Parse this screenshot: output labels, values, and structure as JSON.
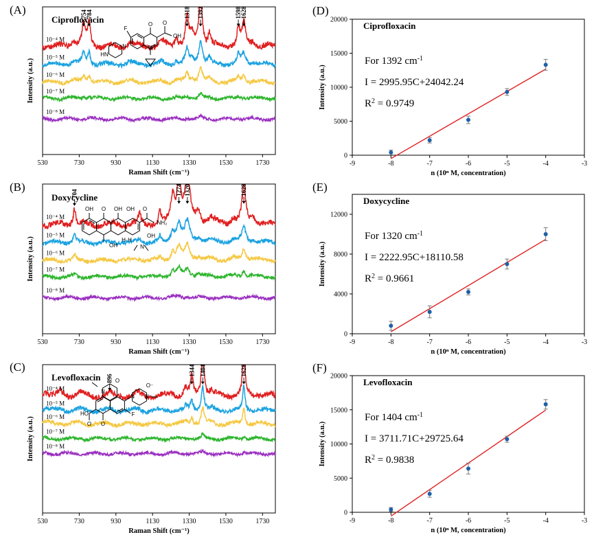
{
  "colors": {
    "conc_series": [
      "#e02020",
      "#1ba2e0",
      "#f5c842",
      "#2db52d",
      "#9a2fc0"
    ],
    "fit_line": "#e02020",
    "data_point": "#1f5fa8",
    "error_bar": "#7a7a7a"
  },
  "structure_icons": [
    "ciprofloxacin-structure-icon",
    "doxycycline-structure-icon",
    "levofloxacin-structure-icon"
  ],
  "chart_data": [
    {
      "panel": "(A)",
      "type": "line",
      "title": "Ciprofloxacin",
      "xlabel": "Raman Shift (cm⁻¹)",
      "ylabel": "Intensity (a.u.)",
      "xlim": [
        530,
        1800
      ],
      "x_ticks": [
        530,
        730,
        930,
        1130,
        1330,
        1530,
        1730
      ],
      "series_labels": [
        "10⁻⁴ M",
        "10⁻⁵ M",
        "10⁻⁶ M",
        "10⁻⁷ M",
        "10⁻⁸ M"
      ],
      "peak_labels": [
        "754",
        "784",
        "1318",
        "1392",
        "1598",
        "1628"
      ],
      "peak_positions": [
        754,
        784,
        1318,
        1392,
        1598,
        1628
      ],
      "series_scale": [
        1.0,
        0.5,
        0.3,
        0.08,
        0.04
      ],
      "baselines": [
        0.73,
        0.61,
        0.49,
        0.38,
        0.24
      ],
      "peaks": [
        [
          754,
          0.42,
          10
        ],
        [
          784,
          0.5,
          9
        ],
        [
          700,
          0.1,
          25
        ],
        [
          1010,
          0.08,
          20
        ],
        [
          1180,
          0.1,
          15
        ],
        [
          1260,
          0.18,
          10
        ],
        [
          1318,
          0.62,
          10
        ],
        [
          1345,
          0.22,
          10
        ],
        [
          1392,
          1.0,
          12
        ],
        [
          1440,
          0.25,
          8
        ],
        [
          1598,
          0.35,
          10
        ],
        [
          1628,
          0.45,
          12
        ],
        [
          1680,
          0.1,
          15
        ]
      ],
      "grid": false,
      "legend": "none"
    },
    {
      "panel": "(B)",
      "type": "line",
      "title": "Doxycycline",
      "xlabel": "Raman Shift (cm⁻¹)",
      "ylabel": "Intensity (a.u.)",
      "xlim": [
        530,
        1800
      ],
      "x_ticks": [
        530,
        730,
        930,
        1130,
        1330,
        1530,
        1730
      ],
      "series_labels": [
        "10⁻⁴ M",
        "10⁻⁵ M",
        "10⁻⁶ M",
        "10⁻⁷ M",
        "10⁻⁸ M"
      ],
      "peak_labels": [
        "704",
        "1274",
        "1320",
        "1628"
      ],
      "peak_positions": [
        704,
        1274,
        1320,
        1628
      ],
      "series_scale": [
        1.0,
        0.42,
        0.3,
        0.18,
        0.03
      ],
      "baselines": [
        0.73,
        0.61,
        0.49,
        0.38,
        0.24
      ],
      "peaks": [
        [
          704,
          0.35,
          8
        ],
        [
          1060,
          0.2,
          8
        ],
        [
          1170,
          0.25,
          6
        ],
        [
          1240,
          0.55,
          12
        ],
        [
          1274,
          0.85,
          14
        ],
        [
          1320,
          1.0,
          16
        ],
        [
          1380,
          0.22,
          14
        ],
        [
          1450,
          0.12,
          20
        ],
        [
          1570,
          0.12,
          15
        ],
        [
          1628,
          0.75,
          12
        ],
        [
          1680,
          0.15,
          15
        ]
      ],
      "grid": false,
      "legend": "none"
    },
    {
      "panel": "(C)",
      "type": "line",
      "title": "Levofloxacin",
      "xlabel": "Raman Shift (cm⁻¹)",
      "ylabel": "Intensity (a.u.)",
      "xlim": [
        530,
        1800
      ],
      "x_ticks": [
        530,
        730,
        930,
        1130,
        1330,
        1530,
        1730
      ],
      "series_labels": [
        "10⁻⁴ M",
        "10⁻⁵ M",
        "10⁻⁶ M",
        "10⁻⁷ M",
        "10⁻⁸ M"
      ],
      "peak_labels": [
        "896",
        "1344",
        "1404",
        "1628"
      ],
      "peak_positions": [
        896,
        1344,
        1404,
        1628
      ],
      "series_scale": [
        1.0,
        0.5,
        0.35,
        0.08,
        0.04
      ],
      "baselines": [
        0.79,
        0.69,
        0.6,
        0.5,
        0.4
      ],
      "peaks": [
        [
          545,
          0.12,
          15
        ],
        [
          630,
          0.08,
          15
        ],
        [
          730,
          0.07,
          15
        ],
        [
          896,
          0.08,
          8
        ],
        [
          1050,
          0.06,
          15
        ],
        [
          1240,
          0.06,
          12
        ],
        [
          1310,
          0.15,
          10
        ],
        [
          1344,
          0.38,
          8
        ],
        [
          1404,
          1.0,
          9
        ],
        [
          1450,
          0.08,
          10
        ],
        [
          1628,
          1.0,
          7
        ],
        [
          1700,
          0.05,
          15
        ]
      ],
      "grid": false,
      "legend": "none"
    },
    {
      "panel": "(D)",
      "type": "scatter",
      "title": "Ciprofloxacin",
      "xlabel": "n (10ⁿ M, concentration)",
      "ylabel": "Intensity (a.u.)",
      "xlim": [
        -9,
        -3
      ],
      "ylim": [
        0,
        20000
      ],
      "x_ticks": [
        -9,
        -8,
        -7,
        -6,
        -5,
        -4,
        -3
      ],
      "y_ticks": [
        0,
        5000,
        10000,
        15000,
        20000
      ],
      "x": [
        -8,
        -7,
        -6,
        -5,
        -4
      ],
      "y": [
        400,
        2200,
        5200,
        9300,
        13300
      ],
      "error": [
        350,
        400,
        550,
        500,
        800
      ],
      "fit": {
        "slope": 2995.95,
        "intercept": 24042.24
      },
      "annotation": {
        "peak_text": "For 1392 cm",
        "peak_exp": "-1",
        "equation": "I = 2995.95C+24042.24",
        "r2_label": "R",
        "r2_exp": "2",
        "r2_value": " = 0.9749"
      },
      "grid": false,
      "legend": "none"
    },
    {
      "panel": "(E)",
      "type": "scatter",
      "title": "Doxycycline",
      "xlabel": "n (10ⁿ M, concentration)",
      "ylabel": "Intensity (a.u.)",
      "xlim": [
        -9,
        -3
      ],
      "ylim": [
        0,
        14000
      ],
      "x_ticks": [
        -9,
        -8,
        -7,
        -6,
        -5,
        -4,
        -3
      ],
      "y_ticks": [
        0,
        4000,
        8000,
        12000
      ],
      "x": [
        -8,
        -7,
        -6,
        -5,
        -4
      ],
      "y": [
        800,
        2200,
        4200,
        7000,
        10000
      ],
      "error": [
        450,
        600,
        300,
        500,
        650
      ],
      "fit": {
        "slope": 2222.95,
        "intercept": 18110.58
      },
      "annotation": {
        "peak_text": "For 1320 cm",
        "peak_exp": "-1",
        "equation": "I = 2222.95C+18110.58",
        "r2_label": "R",
        "r2_exp": "2",
        "r2_value": " = 0.9661"
      },
      "grid": false,
      "legend": "none"
    },
    {
      "panel": "(F)",
      "type": "scatter",
      "title": "Levofloxacin",
      "xlabel": "n (10ⁿ M, concentration)",
      "ylabel": "Intensity (a.u.)",
      "xlim": [
        -9,
        -3
      ],
      "ylim": [
        0,
        20000
      ],
      "x_ticks": [
        -9,
        -8,
        -7,
        -6,
        -5,
        -4,
        -3
      ],
      "y_ticks": [
        0,
        5000,
        10000,
        15000,
        20000
      ],
      "x": [
        -8,
        -7,
        -6,
        -5,
        -4
      ],
      "y": [
        400,
        2700,
        6400,
        10700,
        15800
      ],
      "error": [
        300,
        500,
        800,
        450,
        700
      ],
      "fit": {
        "slope": 3711.71,
        "intercept": 29725.64
      },
      "annotation": {
        "peak_text": "For 1404 cm",
        "peak_exp": "-1",
        "equation": "I = 3711.71C+29725.64",
        "r2_label": "R",
        "r2_exp": "2",
        "r2_value": " = 0.9838"
      },
      "grid": false,
      "legend": "none"
    }
  ]
}
